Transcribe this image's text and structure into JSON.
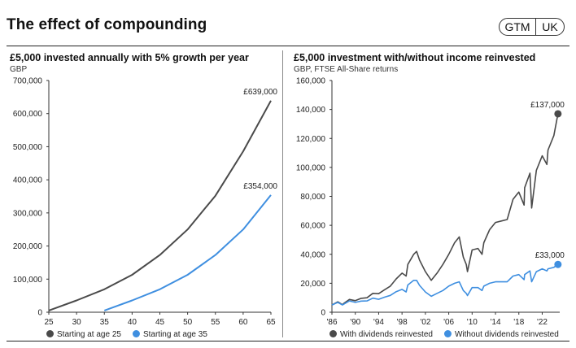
{
  "header": {
    "title": "The effect of compounding",
    "badges": [
      "GTM",
      "UK"
    ]
  },
  "colors": {
    "dark": "#4a4a4a",
    "blue": "#3f8fe0",
    "axis": "#333333",
    "grid": "#e3e3e3"
  },
  "left_panel": {
    "title": "£5,000 invested annually with 5% growth per year",
    "subtitle": "GBP"
  },
  "right_panel": {
    "title": "£5,000 investment with/without income reinvested",
    "subtitle": "GBP, FTSE All-Share returns"
  },
  "chart_data": [
    {
      "type": "line",
      "title": "£5,000 invested annually with 5% growth per year",
      "ylabel": "GBP",
      "xlabel": "",
      "xlim": [
        25,
        65
      ],
      "ylim": [
        0,
        700000
      ],
      "xticks": [
        "25",
        "30",
        "35",
        "40",
        "45",
        "50",
        "55",
        "60",
        "65"
      ],
      "yticks": [
        "0",
        "100,000",
        "200,000",
        "300,000",
        "400,000",
        "500,000",
        "600,000",
        "700,000"
      ],
      "grid": false,
      "legend_position": "bottom",
      "series": [
        {
          "name": "Starting at age 25",
          "color": "#4a4a4a",
          "end_label": "£639,000",
          "points": [
            [
              25,
              5250
            ],
            [
              30,
              35700
            ],
            [
              35,
              69300
            ],
            [
              40,
              113000
            ],
            [
              45,
              173000
            ],
            [
              50,
              250000
            ],
            [
              55,
              352000
            ],
            [
              60,
              486000
            ],
            [
              65,
              639000
            ]
          ]
        },
        {
          "name": "Starting at age 35",
          "color": "#3f8fe0",
          "end_label": "£354,000",
          "points": [
            [
              35,
              5250
            ],
            [
              40,
              35700
            ],
            [
              45,
              69300
            ],
            [
              50,
              113000
            ],
            [
              55,
              173000
            ],
            [
              60,
              250000
            ],
            [
              65,
              354000
            ]
          ]
        }
      ]
    },
    {
      "type": "line",
      "title": "£5,000 investment with/without income reinvested",
      "ylabel": "GBP, FTSE All-Share returns",
      "xlabel": "",
      "xlim": [
        1986,
        2025
      ],
      "ylim": [
        0,
        160000
      ],
      "xticks": [
        "'86",
        "'90",
        "'94",
        "'98",
        "'02",
        "'06",
        "'10",
        "'14",
        "'18",
        "'22"
      ],
      "yticks": [
        "0",
        "20,000",
        "40,000",
        "60,000",
        "80,000",
        "100,000",
        "120,000",
        "140,000",
        "160,000"
      ],
      "grid": false,
      "legend_position": "bottom",
      "series": [
        {
          "name": "With dividends reinvested",
          "color": "#4a4a4a",
          "end_label": "£137,000",
          "points": [
            [
              1986,
              5000
            ],
            [
              1987,
              7200
            ],
            [
              1987.8,
              5200
            ],
            [
              1988,
              6000
            ],
            [
              1989,
              8800
            ],
            [
              1990,
              8000
            ],
            [
              1991,
              9600
            ],
            [
              1992,
              10000
            ],
            [
              1993,
              13000
            ],
            [
              1994,
              12800
            ],
            [
              1995,
              15500
            ],
            [
              1996,
              18000
            ],
            [
              1997,
              23000
            ],
            [
              1998,
              27000
            ],
            [
              1998.7,
              25000
            ],
            [
              1999,
              33000
            ],
            [
              2000,
              40000
            ],
            [
              2000.5,
              42000
            ],
            [
              2001,
              36000
            ],
            [
              2002,
              28000
            ],
            [
              2003,
              22000
            ],
            [
              2004,
              27000
            ],
            [
              2005,
              33000
            ],
            [
              2006,
              40000
            ],
            [
              2007,
              48000
            ],
            [
              2007.8,
              52000
            ],
            [
              2008.5,
              38000
            ],
            [
              2009,
              33000
            ],
            [
              2009.2,
              28000
            ],
            [
              2010,
              43000
            ],
            [
              2011,
              44000
            ],
            [
              2011.7,
              40000
            ],
            [
              2012,
              48000
            ],
            [
              2013,
              57000
            ],
            [
              2014,
              62000
            ],
            [
              2015,
              63000
            ],
            [
              2016,
              64000
            ],
            [
              2017,
              78000
            ],
            [
              2018,
              83000
            ],
            [
              2018.9,
              74000
            ],
            [
              2019,
              86000
            ],
            [
              2019.9,
              96000
            ],
            [
              2020.2,
              72000
            ],
            [
              2021,
              98000
            ],
            [
              2022,
              108000
            ],
            [
              2022.8,
              102000
            ],
            [
              2023,
              112000
            ],
            [
              2024,
              122000
            ],
            [
              2024.7,
              137000
            ]
          ]
        },
        {
          "name": "Without dividends reinvested",
          "color": "#3f8fe0",
          "end_label": "£33,000",
          "points": [
            [
              1986,
              5000
            ],
            [
              1987,
              6800
            ],
            [
              1987.8,
              5000
            ],
            [
              1988,
              5500
            ],
            [
              1989,
              7800
            ],
            [
              1990,
              6800
            ],
            [
              1991,
              7700
            ],
            [
              1992,
              7800
            ],
            [
              1993,
              9700
            ],
            [
              1994,
              8900
            ],
            [
              1995,
              10400
            ],
            [
              1996,
              11600
            ],
            [
              1997,
              14200
            ],
            [
              1998,
              15800
            ],
            [
              1998.7,
              14000
            ],
            [
              1999,
              18800
            ],
            [
              2000,
              22000
            ],
            [
              2000.5,
              22000
            ],
            [
              2001,
              18500
            ],
            [
              2002,
              14000
            ],
            [
              2003,
              11000
            ],
            [
              2004,
              13000
            ],
            [
              2005,
              15000
            ],
            [
              2006,
              18000
            ],
            [
              2007,
              20000
            ],
            [
              2007.8,
              21000
            ],
            [
              2008.5,
              15000
            ],
            [
              2009,
              13000
            ],
            [
              2009.2,
              11500
            ],
            [
              2010,
              17000
            ],
            [
              2011,
              17000
            ],
            [
              2011.7,
              15000
            ],
            [
              2012,
              18000
            ],
            [
              2013,
              20000
            ],
            [
              2014,
              21000
            ],
            [
              2015,
              21000
            ],
            [
              2016,
              21000
            ],
            [
              2017,
              25000
            ],
            [
              2018,
              26000
            ],
            [
              2018.9,
              22500
            ],
            [
              2019,
              26000
            ],
            [
              2019.9,
              28500
            ],
            [
              2020.2,
              21000
            ],
            [
              2021,
              28000
            ],
            [
              2022,
              30000
            ],
            [
              2022.8,
              28500
            ],
            [
              2023,
              30000
            ],
            [
              2024,
              31000
            ],
            [
              2024.7,
              33000
            ]
          ]
        }
      ]
    }
  ]
}
